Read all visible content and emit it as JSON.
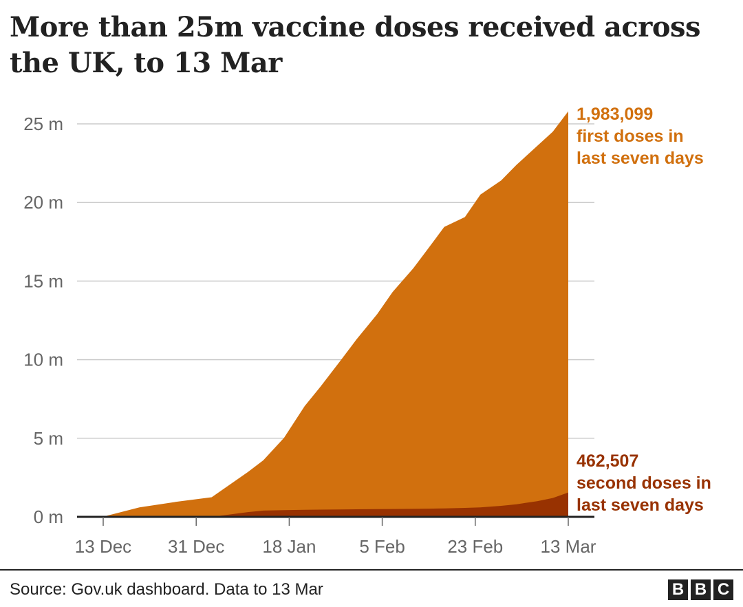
{
  "title": "More than 25m vaccine doses received across the UK, to 13 Mar",
  "source": "Source: Gov.uk dashboard. Data to 13 Mar",
  "logo_letters": [
    "B",
    "B",
    "C"
  ],
  "colors": {
    "first_dose": "#d1700e",
    "second_dose": "#983201",
    "grid": "#cccccc",
    "axis_text": "#666666"
  },
  "chart_data": {
    "type": "area",
    "title": "More than 25m vaccine doses received across the UK, to 13 Mar",
    "x_ticks": [
      "13 Dec",
      "31 Dec",
      "18 Jan",
      "5 Feb",
      "23 Feb",
      "13 Mar"
    ],
    "y_ticks": [
      "0 m",
      "5 m",
      "10 m",
      "15 m",
      "20 m",
      "25 m"
    ],
    "ylim": [
      0,
      25
    ],
    "y_unit": "m",
    "stacked": true,
    "grid": true,
    "x": [
      "13 Dec",
      "20 Dec",
      "27 Dec",
      "3 Jan",
      "10 Jan",
      "13 Jan",
      "17 Jan",
      "21 Jan",
      "24 Jan",
      "28 Jan",
      "31 Jan",
      "4 Feb",
      "7 Feb",
      "11 Feb",
      "14 Feb",
      "17 Feb",
      "21 Feb",
      "24 Feb",
      "28 Feb",
      "3 Mar",
      "7 Mar",
      "10 Mar",
      "13 Mar"
    ],
    "series": [
      {
        "name": "first doses",
        "values": [
          0.01,
          0.6,
          0.95,
          1.25,
          2.55,
          3.2,
          4.6,
          6.6,
          7.8,
          9.5,
          10.8,
          12.4,
          13.8,
          15.3,
          16.6,
          17.9,
          18.5,
          19.9,
          20.7,
          21.6,
          22.6,
          23.3,
          24.25
        ]
      },
      {
        "name": "second doses",
        "values": [
          0,
          0,
          0,
          0,
          0.3,
          0.4,
          0.43,
          0.45,
          0.46,
          0.47,
          0.48,
          0.49,
          0.5,
          0.51,
          0.52,
          0.54,
          0.57,
          0.6,
          0.7,
          0.8,
          1.0,
          1.2,
          1.55
        ]
      }
    ],
    "annotations": [
      {
        "series": "first doses",
        "value": "1,983,099",
        "text_line1": "first doses in",
        "text_line2": "last seven days"
      },
      {
        "series": "second doses",
        "value": "462,507",
        "text_line1": "second doses in",
        "text_line2": "last seven days"
      }
    ]
  }
}
